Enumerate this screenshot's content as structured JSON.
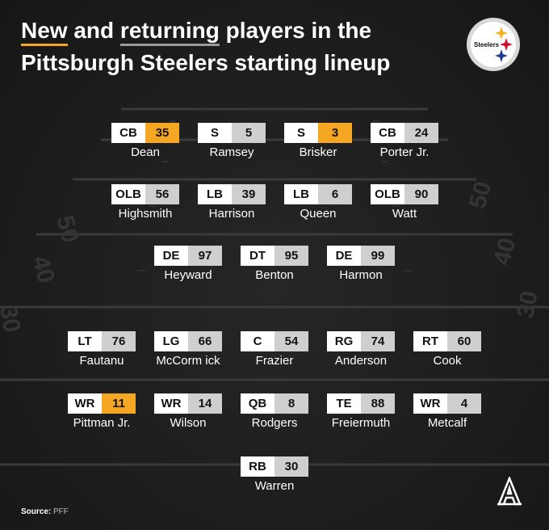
{
  "title": {
    "highlight_new": "New",
    "text_and": " and ",
    "highlight_returning": "returning",
    "text_rest": " players in the Pittsburgh Steelers starting lineup"
  },
  "logo": {
    "text": "Steelers"
  },
  "colors": {
    "new": "#f5a623",
    "returning": "#cfcfcf",
    "background": "#1c1c1c"
  },
  "field_numbers": [
    "40",
    "50",
    "40",
    "30"
  ],
  "players": [
    {
      "pos": "CB",
      "num": "35",
      "name": "Dean",
      "new": true
    },
    {
      "pos": "S",
      "num": "5",
      "name": "Ramsey",
      "new": false
    },
    {
      "pos": "S",
      "num": "3",
      "name": "Brisker",
      "new": true
    },
    {
      "pos": "CB",
      "num": "24",
      "name": "Porter Jr.",
      "new": false
    },
    {
      "pos": "OLB",
      "num": "56",
      "name": "Highsmith",
      "new": false
    },
    {
      "pos": "LB",
      "num": "39",
      "name": "Harrison",
      "new": false
    },
    {
      "pos": "LB",
      "num": "6",
      "name": "Queen",
      "new": false
    },
    {
      "pos": "OLB",
      "num": "90",
      "name": "Watt",
      "new": false
    },
    {
      "pos": "DE",
      "num": "97",
      "name": "Heyward",
      "new": false
    },
    {
      "pos": "DT",
      "num": "95",
      "name": "Benton",
      "new": false
    },
    {
      "pos": "DE",
      "num": "99",
      "name": "Harmon",
      "new": false
    },
    {
      "pos": "LT",
      "num": "76",
      "name": "Fautanu",
      "new": false
    },
    {
      "pos": "LG",
      "num": "66",
      "name": "McCorm ick",
      "new": false
    },
    {
      "pos": "C",
      "num": "54",
      "name": "Frazier",
      "new": false
    },
    {
      "pos": "RG",
      "num": "74",
      "name": "Anderson",
      "new": false
    },
    {
      "pos": "RT",
      "num": "60",
      "name": "Cook",
      "new": false
    },
    {
      "pos": "WR",
      "num": "11",
      "name": "Pittman Jr.",
      "new": true
    },
    {
      "pos": "WR",
      "num": "14",
      "name": "Wilson",
      "new": false
    },
    {
      "pos": "QB",
      "num": "8",
      "name": "Rodgers",
      "new": false
    },
    {
      "pos": "TE",
      "num": "88",
      "name": "Freiermuth",
      "new": false
    },
    {
      "pos": "WR",
      "num": "4",
      "name": "Metcalf",
      "new": false
    },
    {
      "pos": "RB",
      "num": "30",
      "name": "Warren",
      "new": false
    }
  ],
  "source": {
    "label": "Source:",
    "value": "PFF"
  },
  "brand_mark": {
    "icon": "athletic-a-logo"
  }
}
